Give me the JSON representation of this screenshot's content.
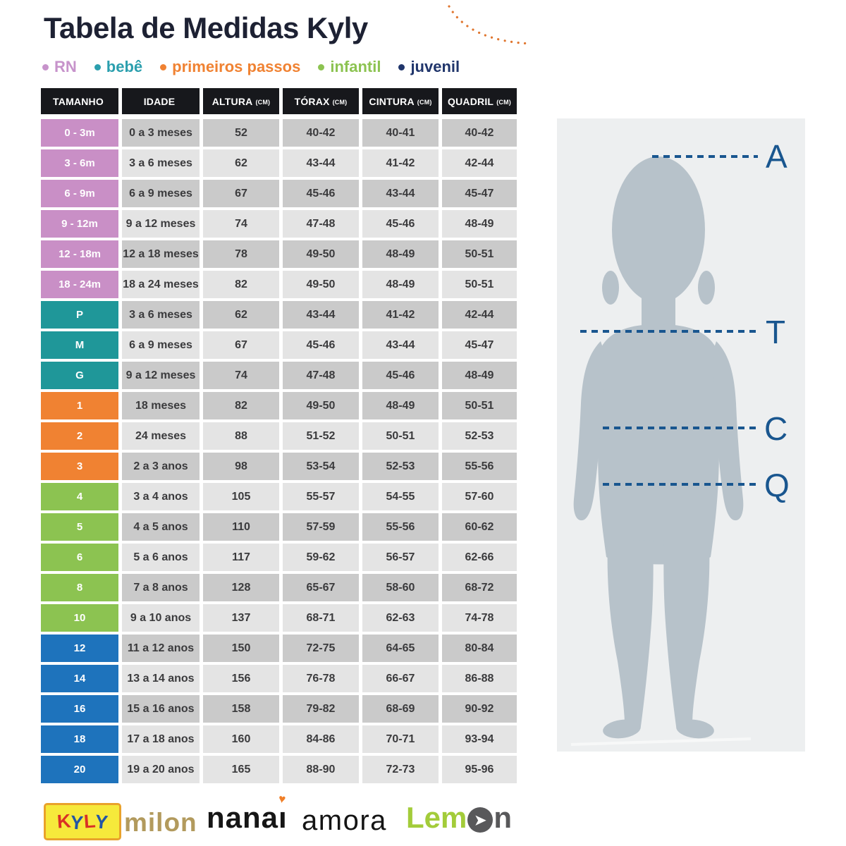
{
  "title": "Tabela de Medidas Kyly",
  "legend": {
    "items": [
      {
        "label": "RN",
        "color": "#c793cb"
      },
      {
        "label": "bebê",
        "color": "#2b9fae"
      },
      {
        "label": "primeiros passos",
        "color": "#f08232"
      },
      {
        "label": "infantil",
        "color": "#8cc351"
      },
      {
        "label": "juvenil",
        "color": "#20356b"
      }
    ]
  },
  "table": {
    "headers": [
      {
        "label": "TAMANHO",
        "unit": ""
      },
      {
        "label": "IDADE",
        "unit": ""
      },
      {
        "label": "ALTURA",
        "unit": "(CM)"
      },
      {
        "label": "TÓRAX",
        "unit": "(CM)"
      },
      {
        "label": "CINTURA",
        "unit": "(CM)"
      },
      {
        "label": "QUADRIL",
        "unit": "(CM)"
      }
    ],
    "category_colors": {
      "rn": "#c98fc6",
      "bebe": "#1f9799",
      "passos": "#f08232",
      "infantil": "#8cc351",
      "juvenil": "#1e73bc"
    },
    "rows": [
      {
        "size": "0 - 3m",
        "category": "rn",
        "shade": "dark",
        "idade": "0 a 3 meses",
        "altura": "52",
        "torax": "40-42",
        "cintura": "40-41",
        "quadril": "40-42"
      },
      {
        "size": "3 - 6m",
        "category": "rn",
        "shade": "light",
        "idade": "3 a 6 meses",
        "altura": "62",
        "torax": "43-44",
        "cintura": "41-42",
        "quadril": "42-44"
      },
      {
        "size": "6 - 9m",
        "category": "rn",
        "shade": "dark",
        "idade": "6 a 9 meses",
        "altura": "67",
        "torax": "45-46",
        "cintura": "43-44",
        "quadril": "45-47"
      },
      {
        "size": "9 - 12m",
        "category": "rn",
        "shade": "light",
        "idade": "9 a 12 meses",
        "altura": "74",
        "torax": "47-48",
        "cintura": "45-46",
        "quadril": "48-49"
      },
      {
        "size": "12 - 18m",
        "category": "rn",
        "shade": "dark",
        "idade": "12 a 18 meses",
        "altura": "78",
        "torax": "49-50",
        "cintura": "48-49",
        "quadril": "50-51"
      },
      {
        "size": "18 - 24m",
        "category": "rn",
        "shade": "light",
        "idade": "18 a 24 meses",
        "altura": "82",
        "torax": "49-50",
        "cintura": "48-49",
        "quadril": "50-51"
      },
      {
        "size": "P",
        "category": "bebe",
        "shade": "dark",
        "idade": "3 a 6 meses",
        "altura": "62",
        "torax": "43-44",
        "cintura": "41-42",
        "quadril": "42-44"
      },
      {
        "size": "M",
        "category": "bebe",
        "shade": "light",
        "idade": "6 a 9 meses",
        "altura": "67",
        "torax": "45-46",
        "cintura": "43-44",
        "quadril": "45-47"
      },
      {
        "size": "G",
        "category": "bebe",
        "shade": "dark",
        "idade": "9 a 12 meses",
        "altura": "74",
        "torax": "47-48",
        "cintura": "45-46",
        "quadril": "48-49"
      },
      {
        "size": "1",
        "category": "passos",
        "shade": "dark",
        "idade": "18 meses",
        "altura": "82",
        "torax": "49-50",
        "cintura": "48-49",
        "quadril": "50-51"
      },
      {
        "size": "2",
        "category": "passos",
        "shade": "light",
        "idade": "24 meses",
        "altura": "88",
        "torax": "51-52",
        "cintura": "50-51",
        "quadril": "52-53"
      },
      {
        "size": "3",
        "category": "passos",
        "shade": "dark",
        "idade": "2 a 3 anos",
        "altura": "98",
        "torax": "53-54",
        "cintura": "52-53",
        "quadril": "55-56"
      },
      {
        "size": "4",
        "category": "infantil",
        "shade": "light",
        "idade": "3 a 4 anos",
        "altura": "105",
        "torax": "55-57",
        "cintura": "54-55",
        "quadril": "57-60"
      },
      {
        "size": "5",
        "category": "infantil",
        "shade": "dark",
        "idade": "4 a 5 anos",
        "altura": "110",
        "torax": "57-59",
        "cintura": "55-56",
        "quadril": "60-62"
      },
      {
        "size": "6",
        "category": "infantil",
        "shade": "light",
        "idade": "5 a 6 anos",
        "altura": "117",
        "torax": "59-62",
        "cintura": "56-57",
        "quadril": "62-66"
      },
      {
        "size": "8",
        "category": "infantil",
        "shade": "dark",
        "idade": "7 a 8 anos",
        "altura": "128",
        "torax": "65-67",
        "cintura": "58-60",
        "quadril": "68-72"
      },
      {
        "size": "10",
        "category": "infantil",
        "shade": "light",
        "idade": "9 a 10 anos",
        "altura": "137",
        "torax": "68-71",
        "cintura": "62-63",
        "quadril": "74-78"
      },
      {
        "size": "12",
        "category": "juvenil",
        "shade": "dark",
        "idade": "11 a 12 anos",
        "altura": "150",
        "torax": "72-75",
        "cintura": "64-65",
        "quadril": "80-84"
      },
      {
        "size": "14",
        "category": "juvenil",
        "shade": "light",
        "idade": "13 a 14 anos",
        "altura": "156",
        "torax": "76-78",
        "cintura": "66-67",
        "quadril": "86-88"
      },
      {
        "size": "16",
        "category": "juvenil",
        "shade": "dark",
        "idade": "15 a 16 anos",
        "altura": "158",
        "torax": "79-82",
        "cintura": "68-69",
        "quadril": "90-92"
      },
      {
        "size": "18",
        "category": "juvenil",
        "shade": "light",
        "idade": "17 a 18 anos",
        "altura": "160",
        "torax": "84-86",
        "cintura": "70-71",
        "quadril": "93-94"
      },
      {
        "size": "20",
        "category": "juvenil",
        "shade": "light",
        "idade": "19 a 20 anos",
        "altura": "165",
        "torax": "88-90",
        "cintura": "72-73",
        "quadril": "95-96"
      }
    ]
  },
  "figure": {
    "line_color": "#19568f",
    "silhouette_color": "#b7c2ca",
    "labels": {
      "altura": "A",
      "torax": "T",
      "cintura": "C",
      "quadril": "Q"
    }
  },
  "logos": {
    "kyly": {
      "letters": [
        {
          "char": "K",
          "color": "#d93025"
        },
        {
          "char": "Y",
          "color": "#2456a5"
        },
        {
          "char": "L",
          "color": "#d93025"
        },
        {
          "char": "Y",
          "color": "#2456a5"
        }
      ]
    },
    "milon": "milon",
    "nanai": {
      "text": "nanaı",
      "heart": "♥"
    },
    "amora": "amora",
    "lemon": {
      "green_part": "Lem",
      "o_arrow": "➤",
      "n_part": "n"
    }
  }
}
